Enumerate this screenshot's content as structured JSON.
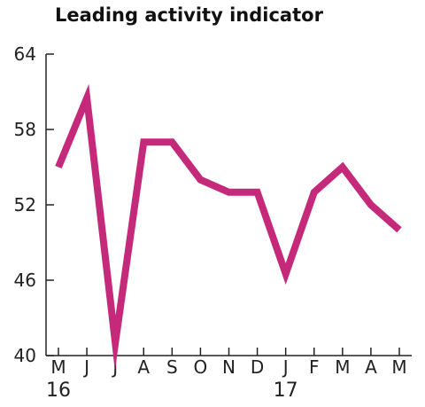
{
  "chart_data": {
    "type": "line",
    "title": "Leading activity indicator",
    "xlabel": "",
    "ylabel": "",
    "categories": [
      "M",
      "J",
      "J",
      "A",
      "S",
      "O",
      "N",
      "D",
      "J",
      "F",
      "M",
      "A",
      "M"
    ],
    "year_labels": [
      {
        "index": 0,
        "label": "16"
      },
      {
        "index": 8,
        "label": "17"
      }
    ],
    "series": [
      {
        "values": [
          55,
          60.5,
          41,
          57,
          57,
          54,
          53,
          53,
          46.5,
          53,
          55,
          52,
          50
        ]
      }
    ],
    "yticks": [
      40,
      46,
      52,
      58,
      64
    ],
    "ylim": [
      40,
      64
    ],
    "grid": false,
    "colors": {
      "line": "#c5297a",
      "axis": "#222222"
    }
  }
}
